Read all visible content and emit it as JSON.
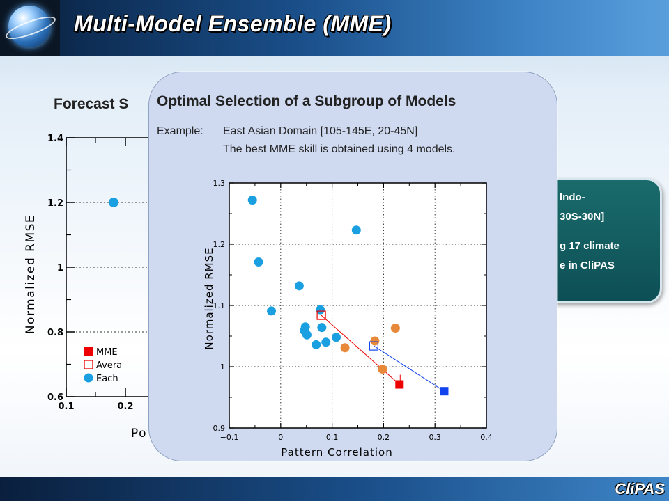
{
  "header": {
    "title": "Multi-Model Ensemble (MME)"
  },
  "footer": {
    "brand": "CliPAS"
  },
  "background_slide": {
    "heading": "Forecast S",
    "teal_box": {
      "line1": "Indo-",
      "line2": "30S-30N]",
      "line3": "g 17 climate",
      "line4": "e in CliPAS"
    },
    "chart_data": {
      "type": "scatter",
      "ylabel": "Normalized RMSE",
      "xlabel": "Po",
      "x_ticks": [
        "0.1",
        "0.2"
      ],
      "y_ticks": [
        "0.6",
        "0.8",
        "1",
        "1.2",
        "1.4"
      ],
      "ylim": [
        0.6,
        1.4
      ],
      "legend": [
        "MME",
        "Avera",
        "Each"
      ],
      "points": [
        {
          "x": 0.18,
          "y": 1.2
        }
      ]
    }
  },
  "popup": {
    "title": "Optimal Selection of a Subgroup of Models",
    "example_label": "Example:",
    "example_text": "East Asian Domain [105-145E, 20-45N]",
    "example_text2": "The best MME skill is obtained using 4 models.",
    "colors": {
      "each": "#1a9fe0",
      "orange": "#e8893a",
      "red": "#ee0000",
      "blue": "#1144ee"
    },
    "chart_data": {
      "type": "scatter",
      "xlabel": "Pattern Correlation",
      "ylabel": "Normalized RMSE",
      "xlim": [
        -0.1,
        0.4
      ],
      "ylim": [
        0.9,
        1.3
      ],
      "x_ticks": [
        "-0.1",
        "0",
        "0.1",
        "0.2",
        "0.3",
        "0.4"
      ],
      "y_ticks": [
        "0.9",
        "1",
        "1.1",
        "1.2",
        "1.3"
      ],
      "grid": true,
      "series": [
        {
          "points": [
            {
              "x": -0.055,
              "y": 1.272
            },
            {
              "x": -0.043,
              "y": 1.171
            },
            {
              "x": -0.018,
              "y": 1.091
            },
            {
              "x": 0.036,
              "y": 1.132
            },
            {
              "x": 0.046,
              "y": 1.059
            },
            {
              "x": 0.048,
              "y": 1.065
            },
            {
              "x": 0.051,
              "y": 1.052
            },
            {
              "x": 0.069,
              "y": 1.036
            },
            {
              "x": 0.077,
              "y": 1.093
            },
            {
              "x": 0.08,
              "y": 1.064
            },
            {
              "x": 0.088,
              "y": 1.04
            },
            {
              "x": 0.108,
              "y": 1.048
            },
            {
              "x": 0.147,
              "y": 1.223
            }
          ]
        },
        {
          "points": [
            {
              "x": 0.125,
              "y": 1.031
            },
            {
              "x": 0.183,
              "y": 1.042
            },
            {
              "x": 0.198,
              "y": 0.996
            },
            {
              "x": 0.223,
              "y": 1.063
            }
          ]
        },
        {
          "points": [
            {
              "x": 0.079,
              "y": 1.084
            },
            {
              "x": 0.231,
              "y": 0.971
            }
          ]
        },
        {
          "points": [
            {
              "x": 0.181,
              "y": 1.034
            },
            {
              "x": 0.318,
              "y": 0.96
            }
          ]
        }
      ]
    }
  }
}
